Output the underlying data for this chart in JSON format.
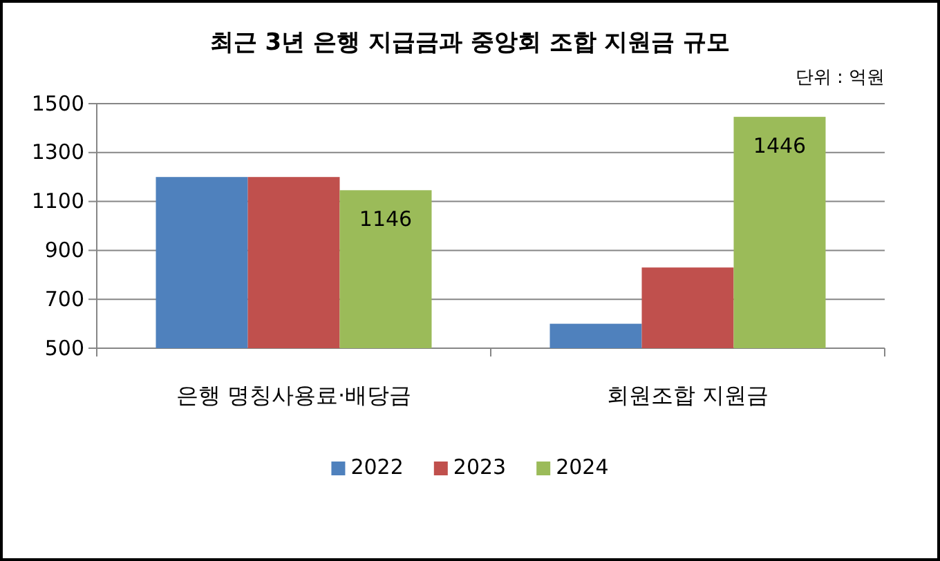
{
  "chart_data": {
    "type": "bar",
    "title": "최근 3년 은행 지급금과 중앙회 조합 지원금 규모",
    "annotations": [
      "단위 : 억원"
    ],
    "categories": [
      "은행 명칭사용료·배당금",
      "회원조합 지원금"
    ],
    "series": [
      {
        "name": "2022",
        "color": "#4f81bd",
        "values": [
          1200,
          600
        ]
      },
      {
        "name": "2023",
        "color": "#c0504d",
        "values": [
          1200,
          830
        ]
      },
      {
        "name": "2024",
        "color": "#9bbb59",
        "values": [
          1146,
          1446
        ],
        "value_labels": [
          "1146",
          "1446"
        ]
      }
    ],
    "ylim": [
      500,
      1500
    ],
    "yticks": [
      500,
      700,
      900,
      1100,
      1300,
      1500
    ],
    "grid": "y",
    "legend": "bottom"
  }
}
